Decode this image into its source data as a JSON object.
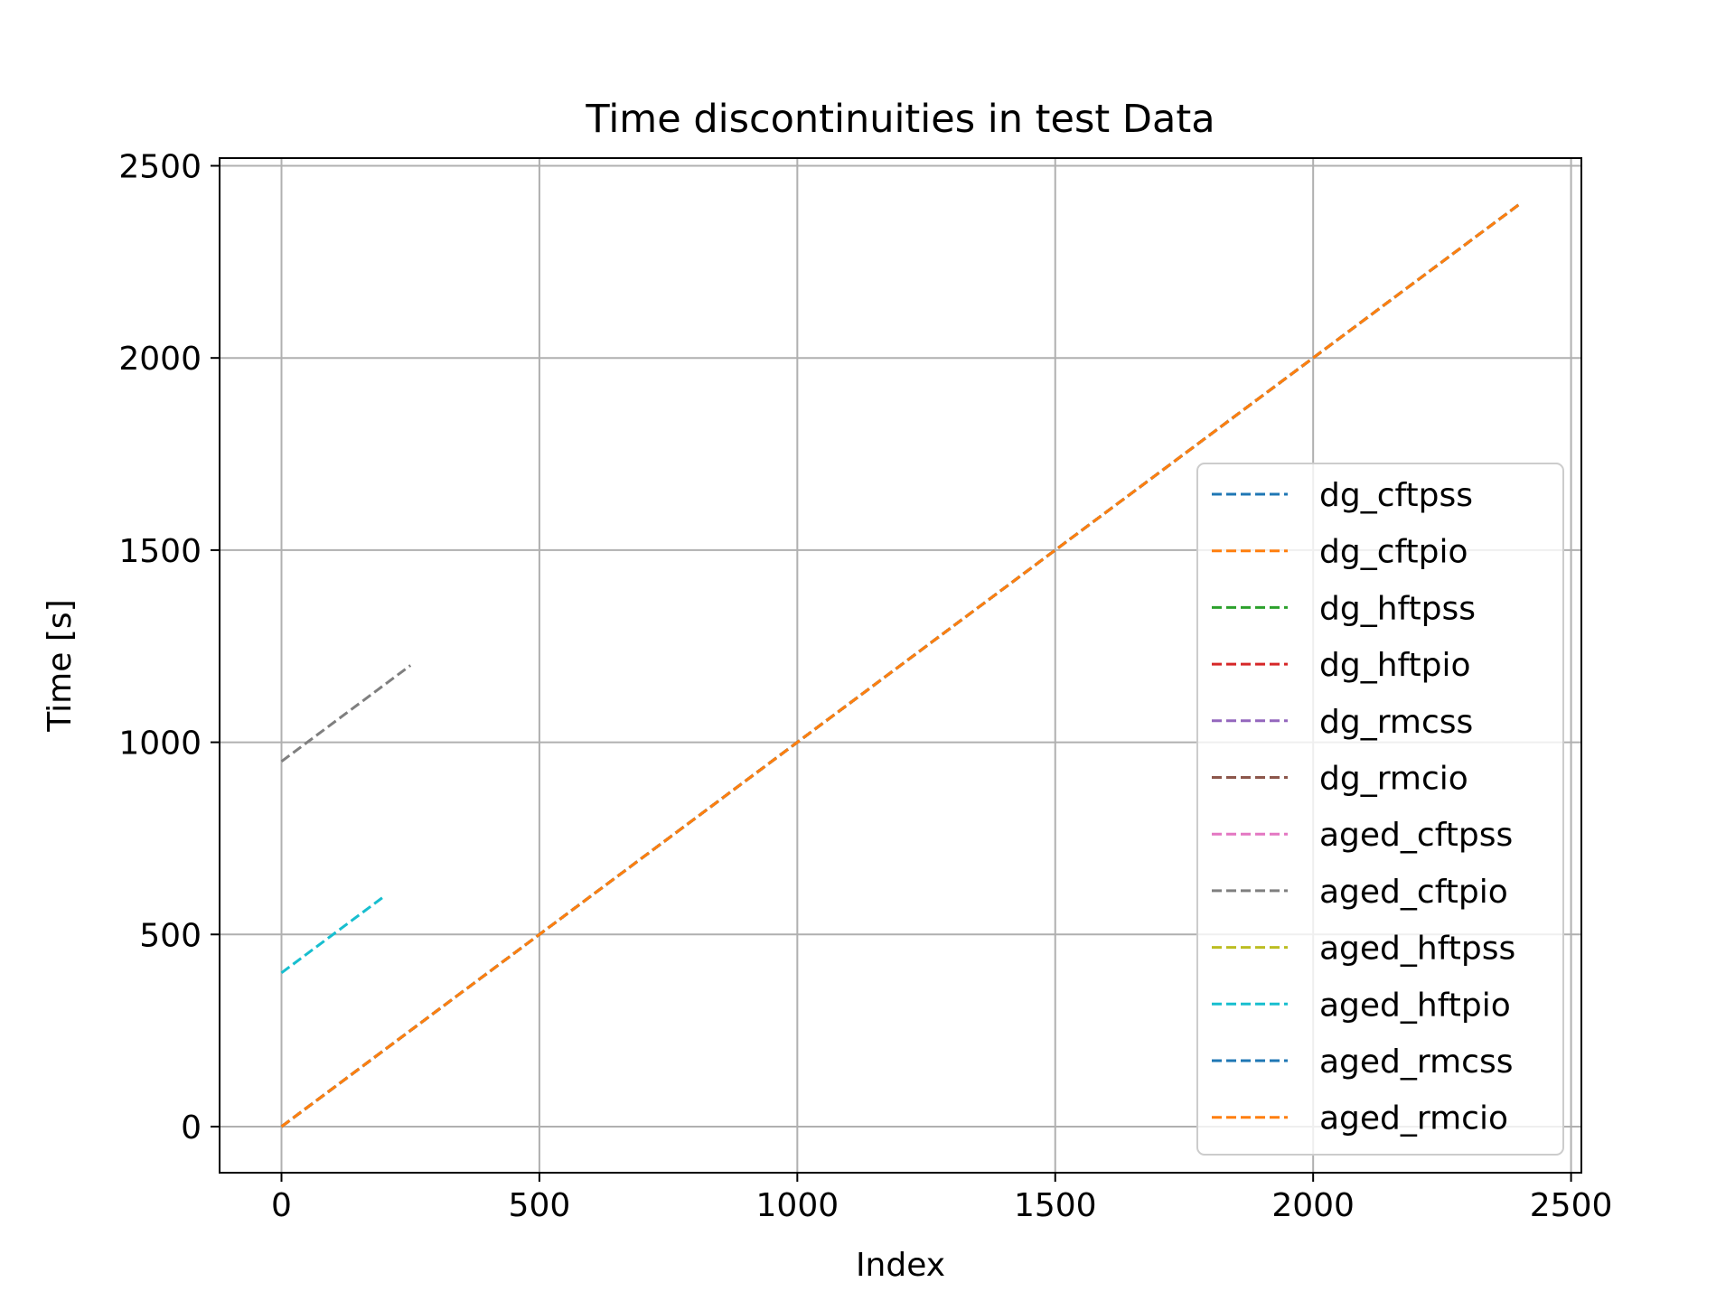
{
  "chart_data": {
    "type": "line",
    "title": "Time discontinuities in test Data",
    "xlabel": "Index",
    "ylabel": "Time [s]",
    "xlim": [
      -120,
      2520
    ],
    "ylim": [
      -120,
      2520
    ],
    "xticks": [
      0,
      500,
      1000,
      1500,
      2000,
      2500
    ],
    "yticks": [
      0,
      500,
      1000,
      1500,
      2000,
      2500
    ],
    "xtick_labels": [
      "0",
      "500",
      "1000",
      "1500",
      "2000",
      "2500"
    ],
    "ytick_labels": [
      "0",
      "500",
      "1000",
      "1500",
      "2000",
      "2500"
    ],
    "grid": true,
    "legend_position": "lower-right",
    "line_style": "dashed",
    "series": [
      {
        "name": "dg_cftpss",
        "color": "#1f77b4",
        "x": [
          0,
          2400
        ],
        "y": [
          0,
          2400
        ]
      },
      {
        "name": "dg_cftpio",
        "color": "#ff7f0e",
        "x": [
          0,
          2400
        ],
        "y": [
          0,
          2400
        ]
      },
      {
        "name": "dg_hftpss",
        "color": "#2ca02c",
        "x": [
          0,
          2400
        ],
        "y": [
          0,
          2400
        ]
      },
      {
        "name": "dg_hftpio",
        "color": "#d62728",
        "x": [
          0,
          2400
        ],
        "y": [
          0,
          2400
        ]
      },
      {
        "name": "dg_rmcss",
        "color": "#9467bd",
        "x": [
          0,
          2400
        ],
        "y": [
          0,
          2400
        ]
      },
      {
        "name": "dg_rmcio",
        "color": "#8c564b",
        "x": [
          0,
          2400
        ],
        "y": [
          0,
          2400
        ]
      },
      {
        "name": "aged_cftpss",
        "color": "#e377c2",
        "x": [
          0,
          2400
        ],
        "y": [
          0,
          2400
        ]
      },
      {
        "name": "aged_cftpio",
        "color": "#7f7f7f",
        "x": [
          0,
          250
        ],
        "y": [
          950,
          1200
        ]
      },
      {
        "name": "aged_hftpss",
        "color": "#bcbd22",
        "x": [
          0,
          2400
        ],
        "y": [
          0,
          2400
        ]
      },
      {
        "name": "aged_hftpio",
        "color": "#17becf",
        "x": [
          0,
          200
        ],
        "y": [
          400,
          600
        ]
      },
      {
        "name": "aged_rmcss",
        "color": "#1f77b4",
        "x": [
          0,
          2400
        ],
        "y": [
          0,
          2400
        ]
      },
      {
        "name": "aged_rmcio",
        "color": "#ff7f0e",
        "x": [
          0,
          2400
        ],
        "y": [
          0,
          2400
        ]
      }
    ]
  }
}
